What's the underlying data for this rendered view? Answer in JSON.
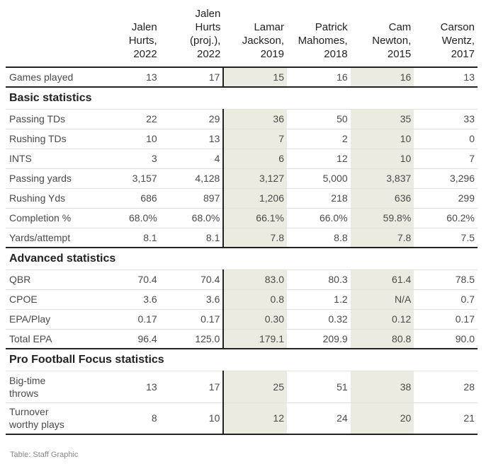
{
  "chart_data": {
    "type": "table",
    "columns": [
      [
        "Jalen",
        "Hurts,",
        "2022"
      ],
      [
        "Jalen",
        "Hurts",
        "(proj.),",
        "2022"
      ],
      [
        "Lamar",
        "Jackson,",
        "2019"
      ],
      [
        "Patrick",
        "Mahomes,",
        "2018"
      ],
      [
        "Cam",
        "Newton,",
        "2015"
      ],
      [
        "Carson",
        "Wentz,",
        "2017"
      ]
    ],
    "highlighted_columns": [
      2,
      4
    ],
    "highlight_color": "#ebebe1",
    "rows_top": [
      {
        "label": "Games played",
        "values": [
          "13",
          "17",
          "15",
          "16",
          "16",
          "13"
        ]
      }
    ],
    "sections": [
      {
        "title": "Basic statistics",
        "rows": [
          {
            "label": "Passing TDs",
            "values": [
              "22",
              "29",
              "36",
              "50",
              "35",
              "33"
            ]
          },
          {
            "label": "Rushing TDs",
            "values": [
              "10",
              "13",
              "7",
              "2",
              "10",
              "0"
            ]
          },
          {
            "label": "INTS",
            "values": [
              "3",
              "4",
              "6",
              "12",
              "10",
              "7"
            ]
          },
          {
            "label": "Passing yards",
            "values": [
              "3,157",
              "4,128",
              "3,127",
              "5,000",
              "3,837",
              "3,296"
            ]
          },
          {
            "label": "Rushing Yds",
            "values": [
              "686",
              "897",
              "1,206",
              "218",
              "636",
              "299"
            ]
          },
          {
            "label": "Completion %",
            "values": [
              "68.0%",
              "68.0%",
              "66.1%",
              "66.0%",
              "59.8%",
              "60.2%"
            ]
          },
          {
            "label": "Yards/attempt",
            "values": [
              "8.1",
              "8.1",
              "7.8",
              "8.8",
              "7.8",
              "7.5"
            ]
          }
        ]
      },
      {
        "title": "Advanced statistics",
        "rows": [
          {
            "label": "QBR",
            "values": [
              "70.4",
              "70.4",
              "83.0",
              "80.3",
              "61.4",
              "78.5"
            ]
          },
          {
            "label": "CPOE",
            "values": [
              "3.6",
              "3.6",
              "0.8",
              "1.2",
              "N/A",
              "0.7"
            ]
          },
          {
            "label": "EPA/Play",
            "values": [
              "0.17",
              "0.17",
              "0.30",
              "0.32",
              "0.12",
              "0.17"
            ]
          },
          {
            "label": "Total EPA",
            "values": [
              "96.4",
              "125.0",
              "179.1",
              "209.9",
              "80.8",
              "90.0"
            ]
          }
        ]
      },
      {
        "title": "Pro Football Focus statistics",
        "rows": [
          {
            "label": [
              "Big-time",
              "throws"
            ],
            "values": [
              "13",
              "17",
              "25",
              "51",
              "38",
              "28"
            ]
          },
          {
            "label": [
              "Turnover",
              "worthy plays"
            ],
            "values": [
              "8",
              "10",
              "12",
              "24",
              "20",
              "21"
            ]
          }
        ]
      }
    ]
  },
  "source": "Table: Staff Graphic"
}
